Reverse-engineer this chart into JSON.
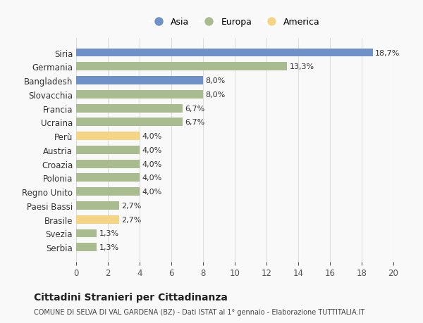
{
  "categories": [
    "Serbia",
    "Svezia",
    "Brasile",
    "Paesi Bassi",
    "Regno Unito",
    "Polonia",
    "Croazia",
    "Austria",
    "Perù",
    "Ucraina",
    "Francia",
    "Slovacchia",
    "Bangladesh",
    "Germania",
    "Siria"
  ],
  "values": [
    1.3,
    1.3,
    2.7,
    2.7,
    4.0,
    4.0,
    4.0,
    4.0,
    4.0,
    6.7,
    6.7,
    8.0,
    8.0,
    13.3,
    18.7
  ],
  "colors": [
    "#a8bc8f",
    "#a8bc8f",
    "#f5d485",
    "#a8bc8f",
    "#a8bc8f",
    "#a8bc8f",
    "#a8bc8f",
    "#a8bc8f",
    "#f5d485",
    "#a8bc8f",
    "#a8bc8f",
    "#a8bc8f",
    "#7090c8",
    "#a8bc8f",
    "#7090c8"
  ],
  "labels": [
    "1,3%",
    "1,3%",
    "2,7%",
    "2,7%",
    "4,0%",
    "4,0%",
    "4,0%",
    "4,0%",
    "4,0%",
    "6,7%",
    "6,7%",
    "8,0%",
    "8,0%",
    "13,3%",
    "18,7%"
  ],
  "legend": [
    {
      "label": "Asia",
      "color": "#7090c8"
    },
    {
      "label": "Europa",
      "color": "#a8bc8f"
    },
    {
      "label": "America",
      "color": "#f5d485"
    }
  ],
  "xlim": [
    0,
    20
  ],
  "xticks": [
    0,
    2,
    4,
    6,
    8,
    10,
    12,
    14,
    16,
    18,
    20
  ],
  "title": "Cittadini Stranieri per Cittadinanza",
  "subtitle": "COMUNE DI SELVA DI VAL GARDENA (BZ) - Dati ISTAT al 1° gennaio - Elaborazione TUTTITALIA.IT",
  "bg_color": "#f9f9f9",
  "bar_height": 0.6,
  "grid_color": "#dddddd"
}
